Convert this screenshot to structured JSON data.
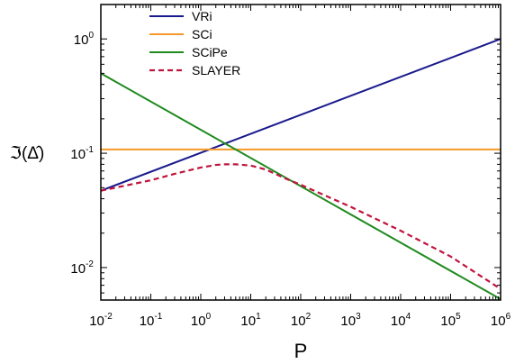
{
  "chart_data": {
    "type": "line",
    "xlabel": "P",
    "ylabel": "ℑ(Δ̂)",
    "xscale": "log",
    "yscale": "log",
    "xlim": [
      0.01,
      1000000
    ],
    "ylim": [
      0.0052,
      2.0
    ],
    "x_ticks": [
      {
        "base": "10",
        "exp": "-2"
      },
      {
        "base": "10",
        "exp": "-1"
      },
      {
        "base": "10",
        "exp": "0"
      },
      {
        "base": "10",
        "exp": "1"
      },
      {
        "base": "10",
        "exp": "2"
      },
      {
        "base": "10",
        "exp": "3"
      },
      {
        "base": "10",
        "exp": "4"
      },
      {
        "base": "10",
        "exp": "5"
      },
      {
        "base": "10",
        "exp": "6"
      }
    ],
    "y_ticks": [
      {
        "base": "10",
        "exp": "-2"
      },
      {
        "base": "10",
        "exp": "-1"
      },
      {
        "base": "10",
        "exp": "0"
      }
    ],
    "legend_position": "top-left",
    "grid": false,
    "series": [
      {
        "name": "VRi",
        "color": "#1a1a8c",
        "dash": "solid",
        "x": [
          0.01,
          1000000
        ],
        "y": [
          0.047,
          1.0
        ]
      },
      {
        "name": "SCi",
        "color": "#f59a2a",
        "dash": "solid",
        "x": [
          0.01,
          1000000
        ],
        "y": [
          0.108,
          0.108
        ]
      },
      {
        "name": "SCiPe",
        "color": "#1f8a1f",
        "dash": "solid",
        "x": [
          0.01,
          1000000
        ],
        "y": [
          0.5,
          0.0053
        ]
      },
      {
        "name": "SLAYER",
        "color": "#c0143c",
        "dash": "dashed",
        "x": [
          0.01,
          0.1,
          0.3,
          1,
          2,
          3,
          5,
          10,
          20,
          50,
          100,
          1000,
          10000,
          100000,
          1000000
        ],
        "y": [
          0.047,
          0.058,
          0.066,
          0.075,
          0.079,
          0.08,
          0.08,
          0.078,
          0.072,
          0.06,
          0.053,
          0.034,
          0.021,
          0.0125,
          0.0065
        ]
      }
    ]
  }
}
